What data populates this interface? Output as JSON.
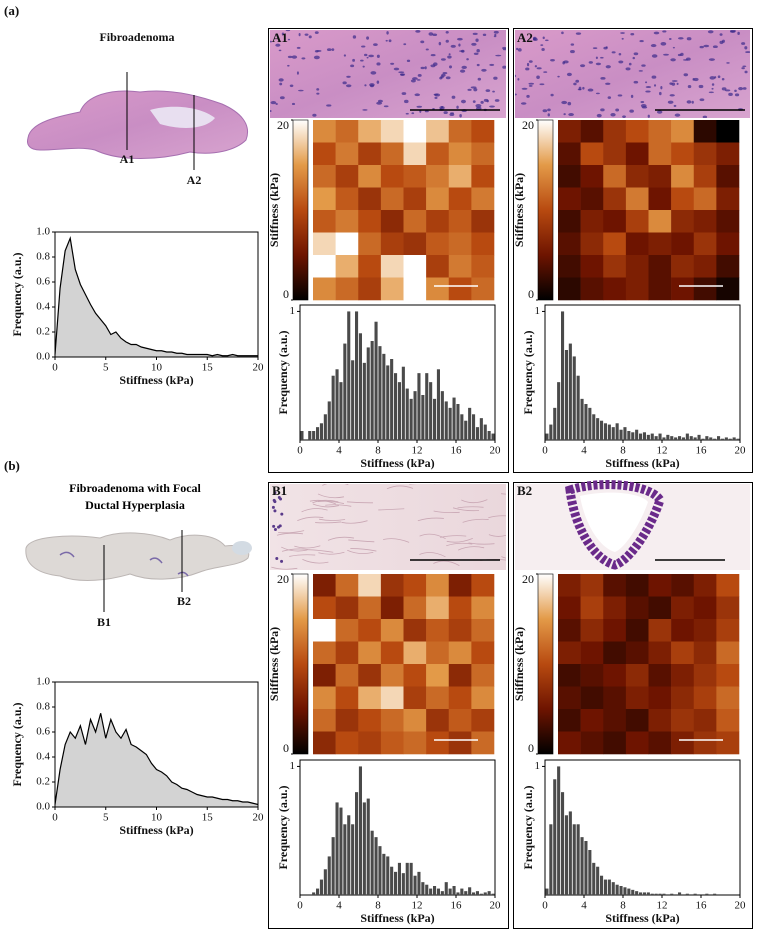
{
  "figure": {
    "panels": [
      {
        "label": "(a)",
        "title": "Fibroadenoma",
        "regions": [
          "A1",
          "A2"
        ]
      },
      {
        "label": "(b)",
        "title": "Fibroadenoma with Focal Ductal Hyperplasia",
        "regions": [
          "B1",
          "B2"
        ]
      }
    ]
  },
  "chart_data": [
    {
      "type": "area",
      "xlabel": "Stiffness (kPa)",
      "ylabel": "Frequency (a.u.)",
      "fill": "#d3d3d3",
      "color": "#000000",
      "x": [
        0,
        0.5,
        1,
        1.5,
        2,
        2.5,
        3,
        3.5,
        4,
        4.5,
        5,
        5.5,
        6,
        6.5,
        7,
        7.5,
        8,
        8.5,
        9,
        9.5,
        10,
        10.5,
        11,
        11.5,
        12,
        12.5,
        13,
        13.5,
        14,
        14.5,
        15,
        15.5,
        16,
        16.5,
        17,
        17.5,
        18,
        18.5,
        19,
        19.5,
        20
      ],
      "values": [
        0.02,
        0.55,
        0.85,
        0.95,
        0.7,
        0.58,
        0.5,
        0.42,
        0.35,
        0.3,
        0.25,
        0.18,
        0.2,
        0.15,
        0.12,
        0.1,
        0.1,
        0.08,
        0.07,
        0.06,
        0.05,
        0.05,
        0.04,
        0.04,
        0.03,
        0.03,
        0.02,
        0.02,
        0.02,
        0.02,
        0.02,
        0.01,
        0.02,
        0.01,
        0.01,
        0.02,
        0.01,
        0.01,
        0.01,
        0.01,
        0.01
      ],
      "xlim": [
        0,
        20
      ],
      "ylim": [
        0,
        1
      ],
      "xticks": [
        0,
        5,
        10,
        15,
        20
      ],
      "yticks": [
        {
          "value": 0,
          "label": "0.0"
        },
        {
          "value": 0.2,
          "label": "0.2"
        },
        {
          "value": 0.4,
          "label": "0.4"
        },
        {
          "value": 0.6,
          "label": "0.6"
        },
        {
          "value": 0.8,
          "label": "0.8"
        },
        {
          "value": 1,
          "label": "1.0"
        }
      ]
    },
    {
      "type": "heatmap",
      "clabel": "Stiffness (kPa)",
      "clim": [
        0,
        20
      ],
      "cticks": [
        0,
        20
      ],
      "colormap": [
        "#000000",
        "#6e1400",
        "#b84a10",
        "#e39a48",
        "#ffffff"
      ],
      "z": [
        [
          14,
          12,
          16,
          18,
          20,
          17,
          12,
          10
        ],
        [
          10,
          13,
          9,
          12,
          18,
          11,
          14,
          12
        ],
        [
          12,
          9,
          14,
          10,
          11,
          13,
          16,
          10
        ],
        [
          15,
          11,
          8,
          12,
          9,
          14,
          10,
          13
        ],
        [
          11,
          13,
          10,
          7,
          12,
          9,
          11,
          8
        ],
        [
          18,
          20,
          12,
          9,
          8,
          11,
          12,
          10
        ],
        [
          20,
          16,
          10,
          18,
          20,
          9,
          13,
          11
        ],
        [
          14,
          12,
          9,
          16,
          20,
          14,
          10,
          12
        ]
      ]
    },
    {
      "type": "histogram",
      "xlabel": "Stiffness (kPa)",
      "ylabel": "Frequency (a.u.)",
      "color": "#4a4a4a",
      "bins": [
        0,
        0.4,
        0.8,
        1.2,
        1.6,
        2,
        2.4,
        2.8,
        3.2,
        3.6,
        4,
        4.4,
        4.8,
        5.2,
        5.6,
        6,
        6.4,
        6.8,
        7.2,
        7.6,
        8,
        8.4,
        8.8,
        9.2,
        9.6,
        10,
        10.4,
        10.8,
        11.2,
        11.6,
        12,
        12.4,
        12.8,
        13.2,
        13.6,
        14,
        14.4,
        14.8,
        15.2,
        15.6,
        16,
        16.4,
        16.8,
        17.2,
        17.6,
        18,
        18.4,
        18.8,
        19.2,
        19.6,
        20
      ],
      "values": [
        0.07,
        0,
        0.07,
        0.07,
        0.1,
        0.13,
        0.2,
        0.3,
        0.5,
        0.55,
        0.45,
        0.75,
        1,
        0.62,
        1,
        0.83,
        0.6,
        0.72,
        0.77,
        0.92,
        0.73,
        0.67,
        0.58,
        0.63,
        0.52,
        0.45,
        0.57,
        0.4,
        0.32,
        0.38,
        0.52,
        0.35,
        0.52,
        0.45,
        0.32,
        0.55,
        0.38,
        0.3,
        0.25,
        0.33,
        0.28,
        0.2,
        0.15,
        0.25,
        0.2,
        0.1,
        0.17,
        0.12,
        0.07,
        0.05
      ],
      "xlim": [
        0,
        20
      ],
      "ylim": [
        0,
        1.05
      ],
      "xticks": [
        0,
        4,
        8,
        12,
        16,
        20
      ],
      "yticks": [
        1
      ]
    },
    {
      "type": "heatmap",
      "clabel": "Stiffness (kPa)",
      "clim": [
        0,
        20
      ],
      "cticks": [
        0,
        20
      ],
      "colormap": [
        "#000000",
        "#6e1400",
        "#b84a10",
        "#e39a48",
        "#ffffff"
      ],
      "z": [
        [
          6,
          4,
          8,
          10,
          12,
          14,
          2,
          0
        ],
        [
          4,
          10,
          8,
          5,
          12,
          10,
          8,
          6
        ],
        [
          3,
          5,
          12,
          7,
          6,
          14,
          9,
          4
        ],
        [
          5,
          4,
          8,
          13,
          5,
          10,
          12,
          6
        ],
        [
          3,
          6,
          5,
          9,
          14,
          7,
          6,
          4
        ],
        [
          4,
          7,
          10,
          5,
          6,
          5,
          8,
          5
        ],
        [
          3,
          5,
          8,
          6,
          4,
          7,
          6,
          3
        ],
        [
          2,
          4,
          5,
          6,
          4,
          5,
          3,
          1
        ]
      ]
    },
    {
      "type": "histogram",
      "xlabel": "Stiffness (kPa)",
      "ylabel": "Frequency (a.u.)",
      "color": "#4a4a4a",
      "bins": [
        0,
        0.4,
        0.8,
        1.2,
        1.6,
        2,
        2.4,
        2.8,
        3.2,
        3.6,
        4,
        4.4,
        4.8,
        5.2,
        5.6,
        6,
        6.4,
        6.8,
        7.2,
        7.6,
        8,
        8.4,
        8.8,
        9.2,
        9.6,
        10,
        10.4,
        10.8,
        11.2,
        11.6,
        12,
        12.4,
        12.8,
        13.2,
        13.6,
        14,
        14.4,
        14.8,
        15.2,
        15.6,
        16,
        16.4,
        16.8,
        17.2,
        17.6,
        18,
        18.4,
        18.8,
        19.2,
        19.6,
        20
      ],
      "values": [
        0.05,
        0.12,
        0.25,
        0.45,
        1,
        0.7,
        0.75,
        0.65,
        0.5,
        0.32,
        0.28,
        0.25,
        0.2,
        0.17,
        0.15,
        0.13,
        0.12,
        0.1,
        0.13,
        0.08,
        0.1,
        0.07,
        0.06,
        0.08,
        0.05,
        0.06,
        0.04,
        0.05,
        0.03,
        0.05,
        0.02,
        0.04,
        0.03,
        0.02,
        0.03,
        0.02,
        0.05,
        0.03,
        0.02,
        0.04,
        0.01,
        0.03,
        0.02,
        0.01,
        0.03,
        0.01,
        0.02,
        0.01,
        0.02,
        0.01
      ],
      "xlim": [
        0,
        20
      ],
      "ylim": [
        0,
        1.05
      ],
      "xticks": [
        0,
        4,
        8,
        12,
        16,
        20
      ],
      "yticks": [
        1
      ]
    },
    {
      "type": "area",
      "xlabel": "Stiffness (kPa)",
      "ylabel": "Frequency (a.u.)",
      "fill": "#d3d3d3",
      "color": "#000000",
      "x": [
        0,
        0.5,
        1,
        1.5,
        2,
        2.5,
        3,
        3.5,
        4,
        4.5,
        5,
        5.5,
        6,
        6.5,
        7,
        7.5,
        8,
        8.5,
        9,
        9.5,
        10,
        10.5,
        11,
        11.5,
        12,
        12.5,
        13,
        13.5,
        14,
        14.5,
        15,
        15.5,
        16,
        16.5,
        17,
        17.5,
        18,
        18.5,
        19,
        19.5,
        20
      ],
      "values": [
        0.02,
        0.3,
        0.5,
        0.6,
        0.55,
        0.65,
        0.5,
        0.7,
        0.6,
        0.75,
        0.55,
        0.7,
        0.6,
        0.55,
        0.62,
        0.5,
        0.48,
        0.45,
        0.42,
        0.35,
        0.3,
        0.28,
        0.25,
        0.2,
        0.18,
        0.15,
        0.14,
        0.12,
        0.1,
        0.09,
        0.08,
        0.08,
        0.07,
        0.06,
        0.06,
        0.05,
        0.05,
        0.04,
        0.04,
        0.03,
        0.02
      ],
      "xlim": [
        0,
        20
      ],
      "ylim": [
        0,
        1
      ],
      "xticks": [
        0,
        5,
        10,
        15,
        20
      ],
      "yticks": [
        {
          "value": 0,
          "label": "0.0"
        },
        {
          "value": 0.2,
          "label": "0.2"
        },
        {
          "value": 0.4,
          "label": "0.4"
        },
        {
          "value": 0.6,
          "label": "0.6"
        },
        {
          "value": 0.8,
          "label": "0.8"
        },
        {
          "value": 1,
          "label": "1.0"
        }
      ]
    },
    {
      "type": "heatmap",
      "clabel": "Stiffness (kPa)",
      "clim": [
        0,
        20
      ],
      "cticks": [
        0,
        20
      ],
      "colormap": [
        "#000000",
        "#6e1400",
        "#b84a10",
        "#e39a48",
        "#ffffff"
      ],
      "z": [
        [
          6,
          12,
          18,
          8,
          10,
          14,
          6,
          10
        ],
        [
          10,
          8,
          12,
          6,
          12,
          16,
          10,
          14
        ],
        [
          20,
          12,
          10,
          14,
          8,
          11,
          9,
          12
        ],
        [
          12,
          9,
          14,
          10,
          16,
          12,
          14,
          10
        ],
        [
          6,
          12,
          8,
          13,
          10,
          15,
          7,
          12
        ],
        [
          14,
          10,
          16,
          18,
          9,
          12,
          10,
          14
        ],
        [
          12,
          8,
          10,
          12,
          14,
          8,
          11,
          9
        ],
        [
          7,
          10,
          9,
          11,
          12,
          10,
          8,
          12
        ]
      ]
    },
    {
      "type": "histogram",
      "xlabel": "Stiffness (kPa)",
      "ylabel": "Frequency (a.u.)",
      "color": "#4a4a4a",
      "bins": [
        0,
        0.4,
        0.8,
        1.2,
        1.6,
        2,
        2.4,
        2.8,
        3.2,
        3.6,
        4,
        4.4,
        4.8,
        5.2,
        5.6,
        6,
        6.4,
        6.8,
        7.2,
        7.6,
        8,
        8.4,
        8.8,
        9.2,
        9.6,
        10,
        10.4,
        10.8,
        11.2,
        11.6,
        12,
        12.4,
        12.8,
        13.2,
        13.6,
        14,
        14.4,
        14.8,
        15.2,
        15.6,
        16,
        16.4,
        16.8,
        17.2,
        17.6,
        18,
        18.4,
        18.8,
        19.2,
        19.6,
        20
      ],
      "values": [
        0,
        0,
        0,
        0.02,
        0.05,
        0.12,
        0.2,
        0.3,
        0.45,
        0.72,
        0.68,
        0.55,
        0.62,
        0.55,
        0.8,
        1,
        0.72,
        0.75,
        0.5,
        0.45,
        0.38,
        0.32,
        0.3,
        0.22,
        0.18,
        0.25,
        0.17,
        0.25,
        0.25,
        0.15,
        0.18,
        0.1,
        0.08,
        0.05,
        0.07,
        0.05,
        0.03,
        0.1,
        0.05,
        0.07,
        0.02,
        0.05,
        0.03,
        0.06,
        0.02,
        0.03,
        0.01,
        0.02,
        0.03,
        0.01
      ],
      "xlim": [
        0,
        20
      ],
      "ylim": [
        0,
        1.05
      ],
      "xticks": [
        0,
        4,
        8,
        12,
        16,
        20
      ],
      "yticks": [
        1
      ]
    },
    {
      "type": "heatmap",
      "clabel": "Stiffness (kPa)",
      "clim": [
        0,
        20
      ],
      "cticks": [
        0,
        20
      ],
      "colormap": [
        "#000000",
        "#6e1400",
        "#b84a10",
        "#e39a48",
        "#ffffff"
      ],
      "z": [
        [
          6,
          8,
          4,
          3,
          5,
          4,
          6,
          10
        ],
        [
          5,
          9,
          6,
          4,
          3,
          6,
          5,
          8
        ],
        [
          4,
          7,
          5,
          3,
          8,
          5,
          6,
          9
        ],
        [
          6,
          5,
          3,
          4,
          6,
          9,
          7,
          12
        ],
        [
          3,
          4,
          5,
          7,
          4,
          6,
          8,
          10
        ],
        [
          4,
          3,
          4,
          6,
          5,
          7,
          9,
          12
        ],
        [
          3,
          5,
          4,
          3,
          6,
          8,
          7,
          11
        ],
        [
          5,
          4,
          3,
          5,
          4,
          6,
          8,
          9
        ]
      ]
    },
    {
      "type": "histogram",
      "xlabel": "Stiffness (kPa)",
      "ylabel": "Frequency (a.u.)",
      "color": "#4a4a4a",
      "bins": [
        0,
        0.4,
        0.8,
        1.2,
        1.6,
        2,
        2.4,
        2.8,
        3.2,
        3.6,
        4,
        4.4,
        4.8,
        5.2,
        5.6,
        6,
        6.4,
        6.8,
        7.2,
        7.6,
        8,
        8.4,
        8.8,
        9.2,
        9.6,
        10,
        10.4,
        10.8,
        11.2,
        11.6,
        12,
        12.4,
        12.8,
        13.2,
        13.6,
        14,
        14.4,
        14.8,
        15.2,
        15.6,
        16,
        16.4,
        16.8,
        17.2,
        17.6,
        18,
        18.4,
        18.8,
        19.2,
        19.6,
        20
      ],
      "values": [
        0.05,
        0.55,
        0.9,
        1,
        0.8,
        0.62,
        0.65,
        0.55,
        0.55,
        0.45,
        0.42,
        0.35,
        0.25,
        0.22,
        0.15,
        0.12,
        0.12,
        0.1,
        0.08,
        0.07,
        0.06,
        0.05,
        0.04,
        0.03,
        0.02,
        0.02,
        0.02,
        0.01,
        0.01,
        0.01,
        0.01,
        0,
        0.01,
        0,
        0.02,
        0,
        0.01,
        0,
        0.01,
        0,
        0,
        0.01,
        0,
        0.01,
        0,
        0,
        0,
        0,
        0,
        0
      ],
      "xlim": [
        0,
        20
      ],
      "ylim": [
        0,
        1.05
      ],
      "xticks": [
        0,
        4,
        8,
        12,
        16,
        20
      ],
      "yticks": [
        1
      ]
    }
  ]
}
